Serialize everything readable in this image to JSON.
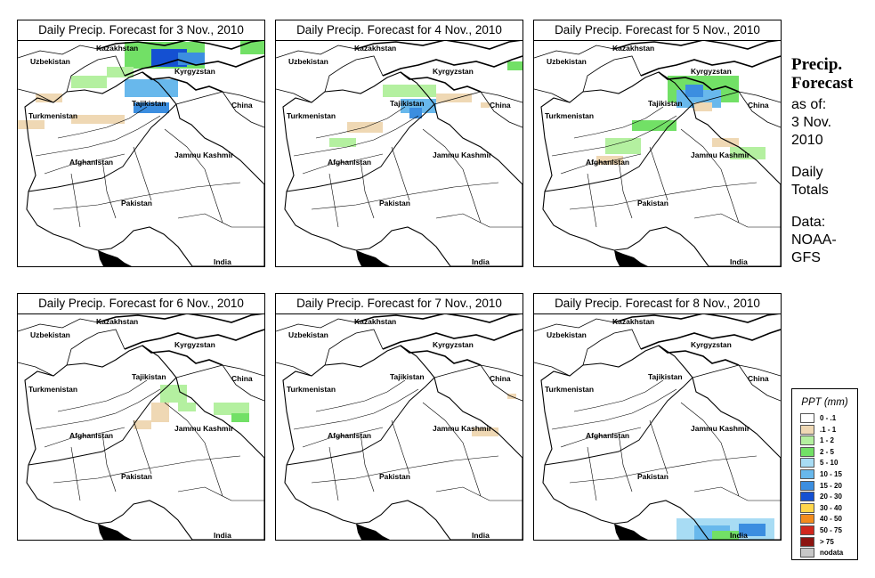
{
  "panels": [
    {
      "title": "Daily Precip. Forecast for  3 Nov., 2010",
      "day": "3 Nov."
    },
    {
      "title": "Daily Precip. Forecast for  4 Nov., 2010",
      "day": "4 Nov."
    },
    {
      "title": "Daily Precip. Forecast for  5 Nov., 2010",
      "day": "5 Nov."
    },
    {
      "title": "Daily Precip. Forecast for  6 Nov., 2010",
      "day": "6 Nov."
    },
    {
      "title": "Daily Precip. Forecast for  7 Nov., 2010",
      "day": "7 Nov."
    },
    {
      "title": "Daily Precip. Forecast for  8 Nov., 2010",
      "day": "8 Nov."
    }
  ],
  "map_labels": {
    "kazakhstan": "Kazakhstan",
    "uzbekistan": "Uzbekistan",
    "kyrgyzstan": "Kyrgyzstan",
    "tajikistan": "Tajikistan",
    "turkmenistan": "Turkmenistan",
    "china": "China",
    "afghanistan": "Afghanistan",
    "jammu_kashmir": "Jammu Kashmir",
    "pakistan": "Pakistan",
    "india": "India"
  },
  "sidebar": {
    "title_line1": "Precip.",
    "title_line2": "Forecast",
    "asof_line1": "as of:",
    "asof_line2": "3 Nov.",
    "asof_line3": "2010",
    "daily_line1": "Daily",
    "daily_line2": "Totals",
    "data_line1": "Data:",
    "data_line2": "NOAA-",
    "data_line3": "GFS"
  },
  "legend": {
    "title": "PPT (mm)",
    "items": [
      {
        "label": "0 - .1",
        "color": "#ffffff"
      },
      {
        "label": ".1 - 1",
        "color": "#efd8b4"
      },
      {
        "label": "1 - 2",
        "color": "#b4f0a0"
      },
      {
        "label": "2 - 5",
        "color": "#72e066"
      },
      {
        "label": "5 - 10",
        "color": "#a8dcf4"
      },
      {
        "label": "10 - 15",
        "color": "#68b8ec"
      },
      {
        "label": "15 - 20",
        "color": "#3c8ee0"
      },
      {
        "label": "20 - 30",
        "color": "#1450d2"
      },
      {
        "label": "30 - 40",
        "color": "#ffd64a"
      },
      {
        "label": "40 - 50",
        "color": "#f28c1e"
      },
      {
        "label": "50 - 75",
        "color": "#d0281e"
      },
      {
        "label": "> 75",
        "color": "#8c1410"
      },
      {
        "label": "nodata",
        "color": "#c8c8c8"
      }
    ]
  },
  "colors": {
    "border": "#000000",
    "background": "#ffffff"
  }
}
